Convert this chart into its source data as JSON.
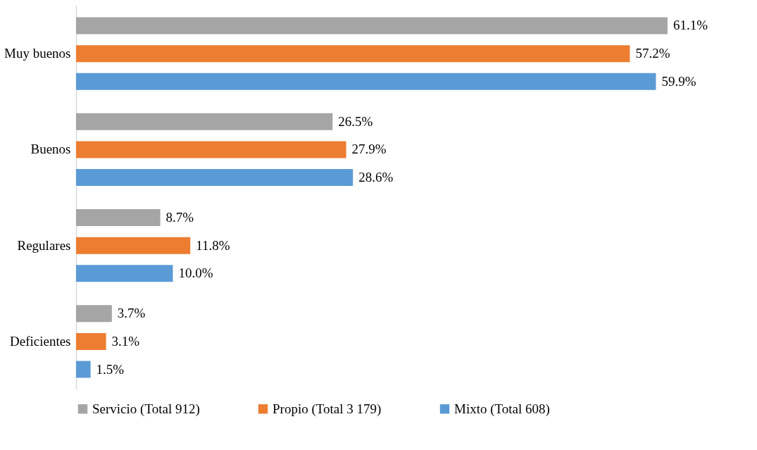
{
  "chart_data": {
    "type": "bar",
    "orientation": "horizontal",
    "categories": [
      "Muy buenos",
      "Buenos",
      "Regulares",
      "Deficientes"
    ],
    "series": [
      {
        "name": "Servicio (Total 912)",
        "color": "#a5a5a5",
        "values": [
          61.1,
          26.5,
          8.7,
          3.7
        ],
        "value_labels": [
          "61.1%",
          "26.5%",
          "8.7%",
          "3.7%"
        ]
      },
      {
        "name": "Propio (Total 3 179)",
        "color": "#ed7d31",
        "values": [
          57.2,
          27.9,
          11.8,
          3.1
        ],
        "value_labels": [
          "57.2%",
          "27.9%",
          "11.8%",
          "3.1%"
        ]
      },
      {
        "name": "Mixto (Total 608)",
        "color": "#5b9bd5",
        "values": [
          59.9,
          28.6,
          10.0,
          1.5
        ],
        "value_labels": [
          "59.9%",
          "28.6%",
          "10.0%",
          "1.5%"
        ]
      }
    ],
    "legend": "bottom",
    "grid": false
  }
}
